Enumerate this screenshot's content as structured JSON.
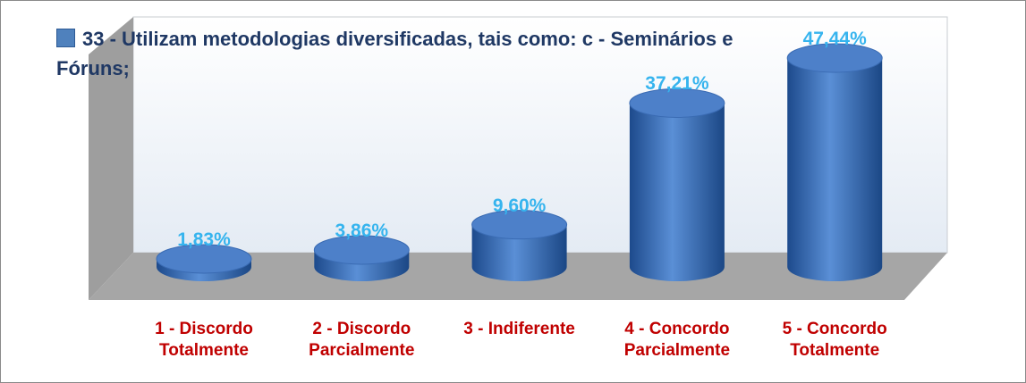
{
  "chart_data": {
    "type": "bar",
    "series": [
      {
        "name": "33 - Utilizam metodologias diversificadas, tais como: c - Seminários e Fóruns;",
        "color": "#4f81bd",
        "values": [
          1.83,
          3.86,
          9.6,
          37.21,
          47.44
        ],
        "value_labels": [
          "1,83%",
          "3,86%",
          "9,60%",
          "37,21%",
          "47,44%"
        ]
      }
    ],
    "categories": [
      "1 - Discordo Totalmente",
      "2 - Discordo Parcialmente",
      "3 - Indiferente",
      "4 - Concordo Parcialmente",
      "5 - Concordo Totalmente"
    ]
  }
}
